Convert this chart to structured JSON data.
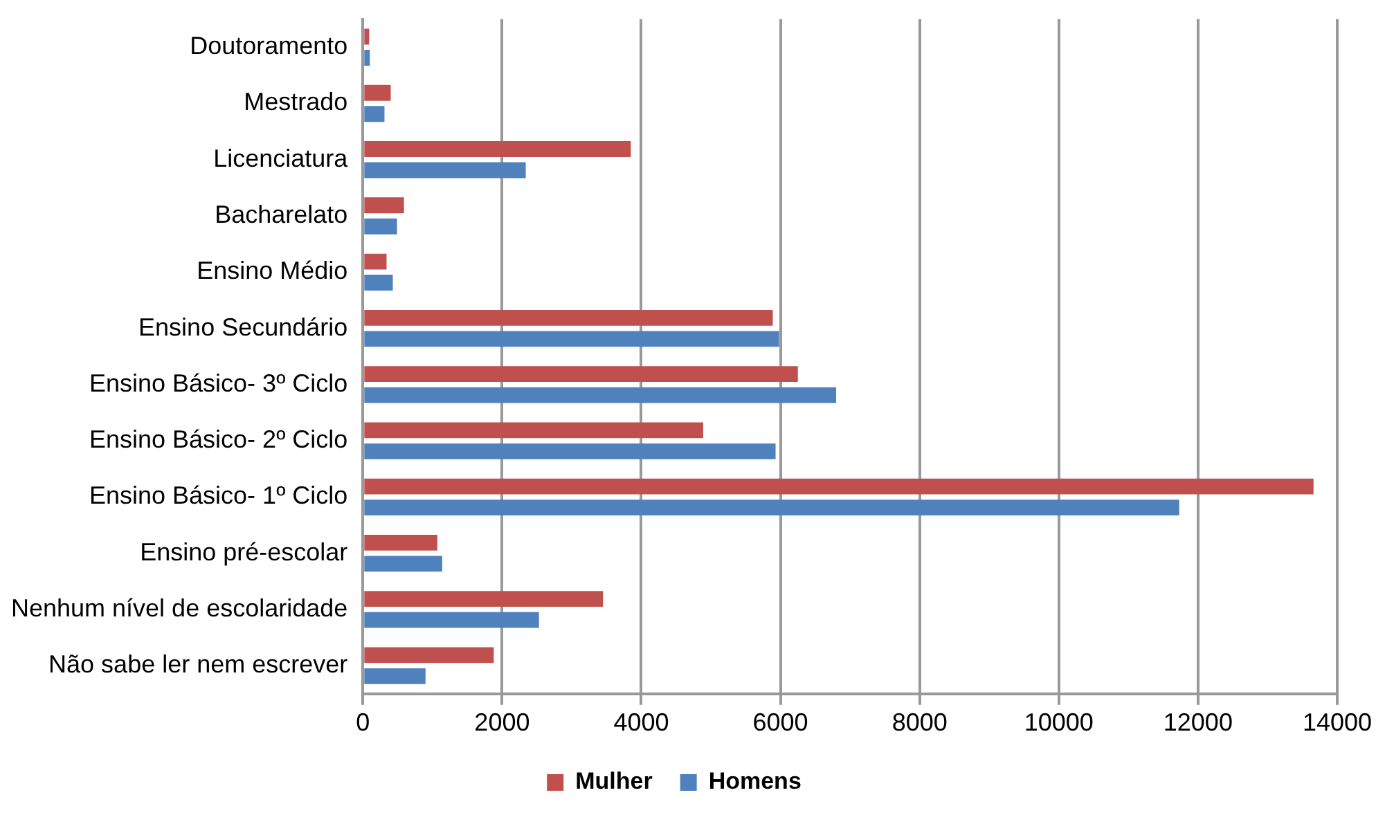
{
  "chart_data": {
    "type": "bar",
    "orientation": "horizontal",
    "categories": [
      "Doutoramento",
      "Mestrado",
      "Licenciatura",
      "Bacharelato",
      "Ensino Médio",
      "Ensino Secundário",
      "Ensino Básico- 3º Ciclo",
      "Ensino Básico- 2º Ciclo",
      "Ensino Básico- 1º Ciclo",
      "Ensino pré-escolar",
      "Nenhum nível de escolaridade",
      "Não sabe ler nem escrever"
    ],
    "series": [
      {
        "name": "Mulher",
        "color": "#c0504d",
        "values": [
          90,
          400,
          3850,
          590,
          340,
          5890,
          6250,
          4890,
          13660,
          1070,
          3450,
          1880
        ]
      },
      {
        "name": "Homens",
        "color": "#4f81bd",
        "values": [
          100,
          310,
          2340,
          490,
          430,
          5980,
          6800,
          5930,
          11730,
          1140,
          2530,
          900
        ]
      }
    ],
    "xlim": [
      0,
      14000
    ],
    "xticks": [
      0,
      2000,
      4000,
      6000,
      8000,
      10000,
      12000,
      14000
    ],
    "grid": "x",
    "legend": "bottom"
  }
}
